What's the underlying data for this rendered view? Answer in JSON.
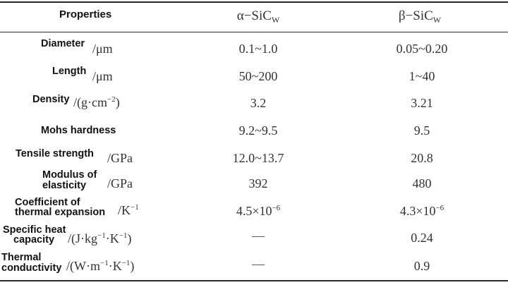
{
  "header": {
    "properties": "Properties",
    "alpha_prefix": "α−SiC",
    "alpha_sub": "W",
    "beta_prefix": "β−SiC",
    "beta_sub": "W"
  },
  "rows": [
    {
      "label_lines": [
        "Diameter"
      ],
      "unit": "/μm",
      "alpha": "0.1~1.0",
      "beta": "0.05~0.20"
    },
    {
      "label_lines": [
        "Length"
      ],
      "unit": "/μm",
      "alpha": "50~200",
      "beta": "1~40"
    },
    {
      "label_lines": [
        "Density"
      ],
      "unit_pre": "/(g·cm",
      "unit_sup": "−2",
      "unit_post": ")",
      "alpha": "3.2",
      "beta": "3.21"
    },
    {
      "label_lines": [
        "Mohs hardness"
      ],
      "unit": "",
      "alpha": "9.2~9.5",
      "beta": "9.5"
    },
    {
      "label_lines": [
        "Tensile strength"
      ],
      "unit": "/GPa",
      "alpha": "12.0~13.7",
      "beta": "20.8"
    },
    {
      "label_lines": [
        "Modulus of",
        "elasticity"
      ],
      "unit": "/GPa",
      "alpha": "392",
      "beta": "480"
    },
    {
      "label_lines": [
        "Coefficient of",
        "thermal expansion"
      ],
      "unit_pre": "/K",
      "unit_sup": "−1",
      "unit_post": "",
      "alpha_pre": "4.5×10",
      "alpha_sup": "−6",
      "beta_pre": "4.3×10",
      "beta_sup": "−6"
    },
    {
      "label_lines": [
        "Specific heat",
        "capacity"
      ],
      "unit_pre": "/(J·kg",
      "unit_sup": "−1",
      "unit_mid": "·K",
      "unit_sup2": "−1",
      "unit_post": ")",
      "alpha": "—",
      "beta": "0.24"
    },
    {
      "label_lines": [
        "Thermal",
        "conductivity"
      ],
      "unit_pre": "/(W·m",
      "unit_sup": "−1",
      "unit_mid": "·K",
      "unit_sup2": "−1",
      "unit_post": ")",
      "alpha": "—",
      "beta": "0.9"
    }
  ]
}
